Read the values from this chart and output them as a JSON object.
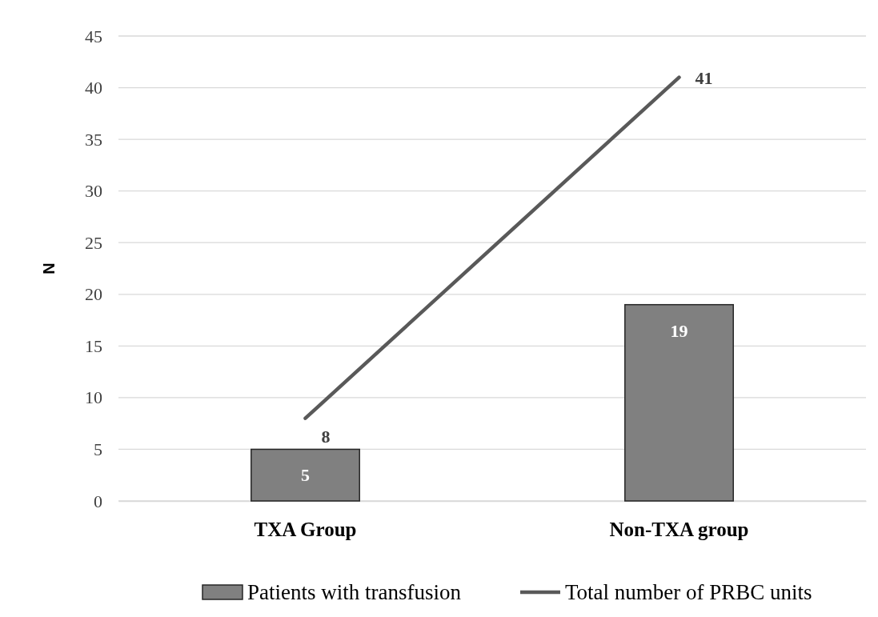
{
  "chart_data": {
    "type": "bar",
    "ylabel": "N",
    "categories": [
      "TXA Group",
      "Non-TXA group"
    ],
    "series": [
      {
        "name": "Patients with transfusion",
        "color": "#808080",
        "values": [
          5,
          19
        ]
      },
      {
        "name": "Total number of PRBC units",
        "type": "line",
        "color": "#595959",
        "values": [
          8,
          41
        ]
      }
    ],
    "ylim": [
      0,
      45
    ],
    "yticks": [
      0,
      5,
      10,
      15,
      20,
      25,
      30,
      35,
      40,
      45
    ],
    "grid": "y",
    "legend": "bottom",
    "data_labels": true
  }
}
